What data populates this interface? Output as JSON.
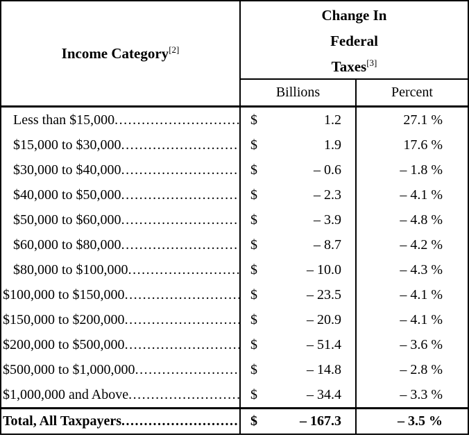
{
  "table": {
    "currency_symbol": "$",
    "header": {
      "income_category": "Income Category",
      "income_category_superscript": "[2]",
      "change_lines": [
        "Change In",
        "Federal",
        "Taxes"
      ],
      "taxes_superscript": "[3]",
      "subheaders": {
        "billions": "Billions",
        "percent": "Percent"
      }
    },
    "rows": [
      {
        "category": "Less than $15,000",
        "billions": "1.2",
        "percent": "27.1 %"
      },
      {
        "category": "$15,000 to $30,000",
        "billions": "1.9",
        "percent": "17.6 %"
      },
      {
        "category": "$30,000 to $40,000",
        "billions": "– 0.6",
        "percent": "– 1.8 %"
      },
      {
        "category": "$40,000 to $50,000",
        "billions": "– 2.3",
        "percent": "– 4.1 %"
      },
      {
        "category": "$50,000 to $60,000",
        "billions": "– 3.9",
        "percent": "– 4.8 %"
      },
      {
        "category": "$60,000 to $80,000",
        "billions": "– 8.7",
        "percent": "– 4.2 %"
      },
      {
        "category": "$80,000 to $100,000",
        "billions": "– 10.0",
        "percent": "– 4.3 %"
      },
      {
        "category": "$100,000 to $150,000",
        "billions": "– 23.5",
        "percent": "– 4.1 %"
      },
      {
        "category": "$150,000 to $200,000",
        "billions": "– 20.9",
        "percent": "– 4.1 %"
      },
      {
        "category": "$200,000 to $500,000",
        "billions": "– 51.4",
        "percent": "– 3.6 %"
      },
      {
        "category": "$500,000 to $1,000,000",
        "billions": "– 14.8",
        "percent": "– 2.8 %"
      },
      {
        "category": "$1,000,000 and Above",
        "billions": "– 34.4",
        "percent": "– 3.3 %"
      }
    ],
    "total": {
      "category": "Total, All Taxpayers",
      "billions": "– 167.3",
      "percent": "– 3.5 %"
    }
  }
}
